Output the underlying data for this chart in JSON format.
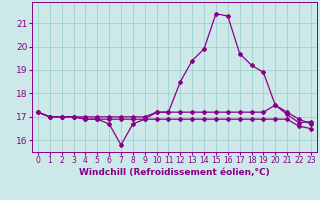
{
  "xlabel": "Windchill (Refroidissement éolien,°C)",
  "background_color": "#cce8e8",
  "line_color": "#880088",
  "grid_color": "#99cccc",
  "x_values": [
    0,
    1,
    2,
    3,
    4,
    5,
    6,
    7,
    8,
    9,
    10,
    11,
    12,
    13,
    14,
    15,
    16,
    17,
    18,
    19,
    20,
    21,
    22,
    23
  ],
  "y_main": [
    17.2,
    17.0,
    17.0,
    17.0,
    16.9,
    16.9,
    16.7,
    15.8,
    16.7,
    16.9,
    17.2,
    17.2,
    18.5,
    19.4,
    19.9,
    21.4,
    21.3,
    19.7,
    19.2,
    18.9,
    17.5,
    17.1,
    16.75,
    16.8
  ],
  "y_flat1": [
    17.2,
    17.0,
    17.0,
    17.0,
    17.0,
    17.0,
    17.0,
    17.0,
    17.0,
    17.0,
    17.2,
    17.2,
    17.2,
    17.2,
    17.2,
    17.2,
    17.2,
    17.2,
    17.2,
    17.2,
    17.5,
    17.2,
    16.9,
    16.7
  ],
  "y_flat2": [
    17.2,
    17.0,
    17.0,
    17.0,
    16.9,
    16.9,
    16.9,
    16.9,
    16.9,
    16.9,
    16.9,
    16.9,
    16.9,
    16.9,
    16.9,
    16.9,
    16.9,
    16.9,
    16.9,
    16.9,
    16.9,
    16.9,
    16.6,
    16.5
  ],
  "ylim": [
    15.5,
    21.9
  ],
  "yticks": [
    16,
    17,
    18,
    19,
    20,
    21
  ],
  "xlim": [
    -0.5,
    23.5
  ],
  "xtick_labels": [
    "0",
    "1",
    "2",
    "3",
    "4",
    "5",
    "6",
    "7",
    "8",
    "9",
    "10",
    "11",
    "12",
    "13",
    "14",
    "15",
    "16",
    "17",
    "18",
    "19",
    "20",
    "21",
    "22",
    "23"
  ],
  "font_size_xlabel": 6.5,
  "font_size_ytick": 6.5,
  "font_size_xtick": 5.5,
  "marker": "D",
  "marker_size": 2.0,
  "line_width": 0.9
}
